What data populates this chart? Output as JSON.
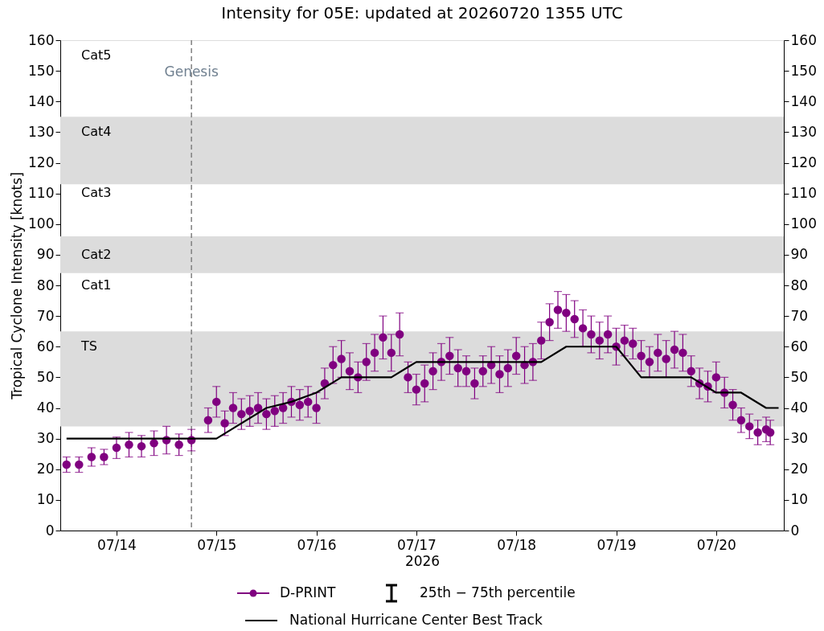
{
  "chart_data": {
    "type": "scatter",
    "title": "Intensity for 05E: updated at 20260720 1355 UTC",
    "xlabel": "2026",
    "ylabel": "Tropical Cyclone Intensity [knots]",
    "xlim": [
      "2026-07-13T10:30",
      "2026-07-20T16:15"
    ],
    "xticks": [
      {
        "value": "2026-07-14",
        "label": "07/14"
      },
      {
        "value": "2026-07-15",
        "label": "07/15"
      },
      {
        "value": "2026-07-16",
        "label": "07/16"
      },
      {
        "value": "2026-07-17",
        "label": "07/17"
      },
      {
        "value": "2026-07-18",
        "label": "07/18"
      },
      {
        "value": "2026-07-19",
        "label": "07/19"
      },
      {
        "value": "2026-07-20",
        "label": "07/20"
      }
    ],
    "ylim": [
      0,
      160
    ],
    "yticks": [
      0,
      10,
      20,
      30,
      40,
      50,
      60,
      70,
      80,
      90,
      100,
      110,
      120,
      130,
      140,
      150,
      160
    ],
    "y2lim": [
      0,
      160
    ],
    "y2ticks": [
      0,
      10,
      20,
      30,
      40,
      50,
      60,
      70,
      80,
      90,
      100,
      110,
      120,
      130,
      140,
      150,
      160
    ],
    "grid": false,
    "legend": "bottom",
    "bands": [
      {
        "axis": "y",
        "from": 34,
        "to": 65,
        "color": "#dcdcdc"
      },
      {
        "axis": "y",
        "from": 84,
        "to": 96,
        "color": "#dcdcdc"
      },
      {
        "axis": "y",
        "from": 113,
        "to": 135,
        "color": "#dcdcdc"
      }
    ],
    "ref_lines": [
      {
        "axis": "x",
        "value": "2026-07-14T18:00",
        "label": "Genesis",
        "color": "#808080",
        "line_style": "dashed"
      }
    ],
    "annotations": [
      "Cat5",
      "Cat4",
      "Cat3",
      "Cat2",
      "Cat1",
      "TS",
      "25th − 75th percentile"
    ],
    "series": [
      {
        "name": "D-PRINT",
        "type": "scatter",
        "marker": "circle",
        "color": "#800080",
        "x": [
          "2026-07-13T12:00",
          "2026-07-13T15:00",
          "2026-07-13T18:00",
          "2026-07-13T21:00",
          "2026-07-14T00:00",
          "2026-07-14T03:00",
          "2026-07-14T06:00",
          "2026-07-14T09:00",
          "2026-07-14T12:00",
          "2026-07-14T15:00",
          "2026-07-14T18:00",
          "2026-07-14T22:00",
          "2026-07-15T00:00",
          "2026-07-15T02:00",
          "2026-07-15T04:00",
          "2026-07-15T06:00",
          "2026-07-15T08:00",
          "2026-07-15T10:00",
          "2026-07-15T12:00",
          "2026-07-15T14:00",
          "2026-07-15T16:00",
          "2026-07-15T18:00",
          "2026-07-15T20:00",
          "2026-07-15T22:00",
          "2026-07-16T00:00",
          "2026-07-16T02:00",
          "2026-07-16T04:00",
          "2026-07-16T06:00",
          "2026-07-16T08:00",
          "2026-07-16T10:00",
          "2026-07-16T12:00",
          "2026-07-16T14:00",
          "2026-07-16T16:00",
          "2026-07-16T18:00",
          "2026-07-16T20:00",
          "2026-07-16T22:00",
          "2026-07-17T00:00",
          "2026-07-17T02:00",
          "2026-07-17T04:00",
          "2026-07-17T06:00",
          "2026-07-17T08:00",
          "2026-07-17T10:00",
          "2026-07-17T12:00",
          "2026-07-17T14:00",
          "2026-07-17T16:00",
          "2026-07-17T18:00",
          "2026-07-17T20:00",
          "2026-07-17T22:00",
          "2026-07-18T00:00",
          "2026-07-18T02:00",
          "2026-07-18T04:00",
          "2026-07-18T06:00",
          "2026-07-18T08:00",
          "2026-07-18T10:00",
          "2026-07-18T12:00",
          "2026-07-18T14:00",
          "2026-07-18T16:00",
          "2026-07-18T18:00",
          "2026-07-18T20:00",
          "2026-07-18T22:00",
          "2026-07-19T00:00",
          "2026-07-19T02:00",
          "2026-07-19T04:00",
          "2026-07-19T06:00",
          "2026-07-19T08:00",
          "2026-07-19T10:00",
          "2026-07-19T12:00",
          "2026-07-19T14:00",
          "2026-07-19T16:00",
          "2026-07-19T18:00",
          "2026-07-19T20:00",
          "2026-07-19T22:00",
          "2026-07-20T00:00",
          "2026-07-20T02:00",
          "2026-07-20T04:00",
          "2026-07-20T06:00",
          "2026-07-20T08:00",
          "2026-07-20T10:00",
          "2026-07-20T12:00",
          "2026-07-20T13:00"
        ],
        "values": [
          21.5,
          21.5,
          24,
          24,
          27,
          28,
          27.5,
          28.5,
          29.5,
          28,
          29.5,
          36,
          42,
          35,
          40,
          38,
          39,
          40,
          38,
          39,
          40,
          42,
          41,
          42,
          40,
          48,
          54,
          56,
          52,
          50,
          55,
          58,
          63,
          58,
          64,
          50,
          46,
          48,
          52,
          55,
          57,
          53,
          52,
          48,
          52,
          54,
          51,
          53,
          57,
          54,
          55,
          62,
          68,
          72,
          71,
          69,
          66,
          64,
          62,
          64,
          60,
          62,
          61,
          57,
          55,
          58,
          56,
          59,
          58,
          52,
          48,
          47,
          50,
          45,
          41,
          36,
          34,
          32,
          33,
          32
        ],
        "errors": [
          2.5,
          2.5,
          3,
          2.5,
          3.5,
          4,
          3.5,
          4,
          4.5,
          3.5,
          3.5,
          4,
          5,
          4,
          5,
          5,
          5,
          5,
          5,
          5,
          5,
          5,
          5,
          5,
          5,
          5,
          6,
          6,
          6,
          5,
          6,
          6,
          7,
          6,
          7,
          5,
          5,
          6,
          6,
          6,
          6,
          6,
          5,
          5,
          5,
          6,
          6,
          6,
          6,
          6,
          6,
          6,
          6,
          6,
          6,
          6,
          6,
          6,
          6,
          6,
          6,
          5,
          5,
          5,
          5,
          6,
          6,
          6,
          6,
          5,
          5,
          5,
          5,
          5,
          5,
          4,
          4,
          4,
          4,
          4
        ]
      },
      {
        "name": "National Hurricane Center Best Track",
        "type": "line",
        "color": "#000000",
        "x": [
          "2026-07-13T12:00",
          "2026-07-15T00:00",
          "2026-07-15T12:00",
          "2026-07-15T18:00",
          "2026-07-16T00:00",
          "2026-07-16T06:00",
          "2026-07-16T18:00",
          "2026-07-17T00:00",
          "2026-07-18T06:00",
          "2026-07-18T12:00",
          "2026-07-19T00:00",
          "2026-07-19T06:00",
          "2026-07-19T18:00",
          "2026-07-20T00:00",
          "2026-07-20T06:00",
          "2026-07-20T12:00",
          "2026-07-20T15:00"
        ],
        "values": [
          30,
          30,
          40,
          42,
          45,
          50,
          50,
          55,
          55,
          60,
          60,
          50,
          50,
          45,
          45,
          40,
          40
        ]
      }
    ]
  }
}
